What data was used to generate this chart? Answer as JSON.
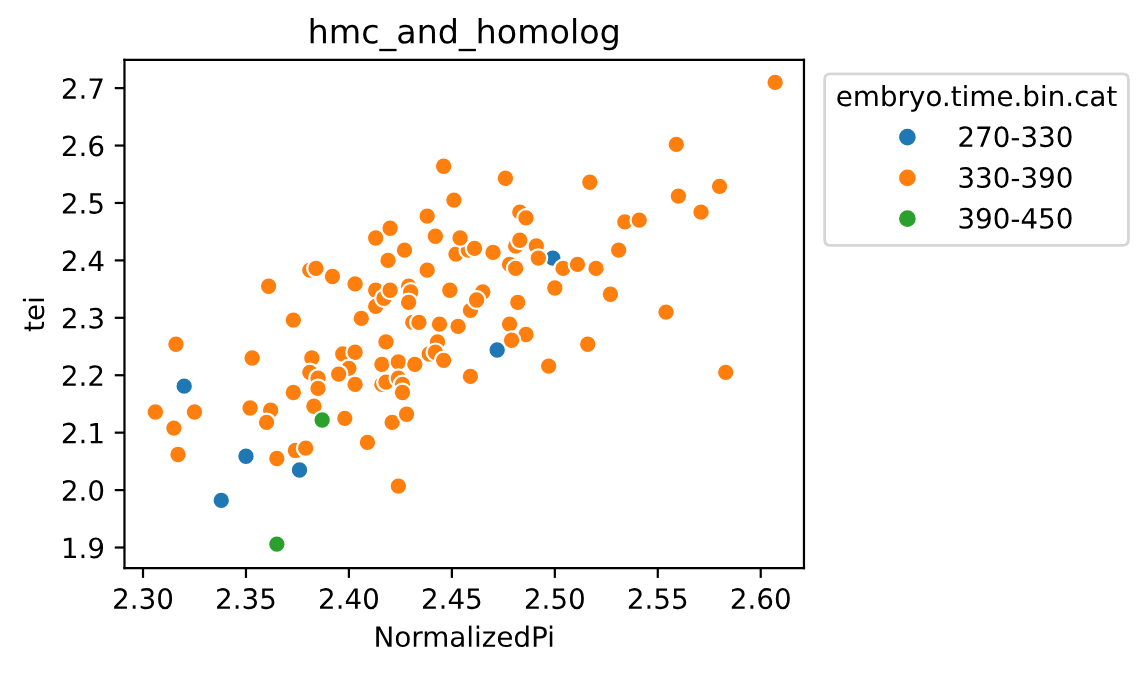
{
  "chart_data": {
    "type": "scatter",
    "title": "hmc_and_homolog",
    "xlabel": "NormalizedPi",
    "ylabel": "tei",
    "legend_title": "embryo.time.bin.cat",
    "legend": "right",
    "marker": "circle",
    "grid": false,
    "xlim": [
      2.291,
      2.621
    ],
    "ylim": [
      1.864,
      2.749
    ],
    "xticks": [
      {
        "value": 2.3,
        "label": "2.30"
      },
      {
        "value": 2.35,
        "label": "2.35"
      },
      {
        "value": 2.4,
        "label": "2.40"
      },
      {
        "value": 2.45,
        "label": "2.45"
      },
      {
        "value": 2.5,
        "label": "2.50"
      },
      {
        "value": 2.55,
        "label": "2.55"
      },
      {
        "value": 2.6,
        "label": "2.60"
      }
    ],
    "yticks": [
      {
        "value": 1.9,
        "label": "1.9"
      },
      {
        "value": 2.0,
        "label": "2.0"
      },
      {
        "value": 2.1,
        "label": "2.1"
      },
      {
        "value": 2.2,
        "label": "2.2"
      },
      {
        "value": 2.3,
        "label": "2.3"
      },
      {
        "value": 2.4,
        "label": "2.4"
      },
      {
        "value": 2.5,
        "label": "2.5"
      },
      {
        "value": 2.6,
        "label": "2.6"
      },
      {
        "value": 2.7,
        "label": "2.7"
      }
    ],
    "series": [
      {
        "name": "270-330",
        "color": "#1f77b4",
        "x": [
          2.32,
          2.338,
          2.35,
          2.376,
          2.472,
          2.499
        ],
        "values": [
          2.181,
          1.982,
          2.059,
          2.035,
          2.244,
          2.404
        ]
      },
      {
        "name": "330-390",
        "color": "#ff7f0e",
        "x": [
          2.316,
          2.361,
          2.373,
          2.381,
          2.384,
          2.392,
          2.403,
          2.406,
          2.413,
          2.413,
          2.417,
          2.42,
          2.419,
          2.413,
          2.42,
          2.427,
          2.429,
          2.43,
          2.429,
          2.431,
          2.434,
          2.444,
          2.453,
          2.438,
          2.449,
          2.438,
          2.442,
          2.446,
          2.451,
          2.452,
          2.458,
          2.459,
          2.418,
          2.443,
          2.607,
          2.559,
          2.476,
          2.517,
          2.56,
          2.58,
          2.571,
          2.534,
          2.541,
          2.483,
          2.486,
          2.454,
          2.461,
          2.47,
          2.481,
          2.483,
          2.491,
          2.492,
          2.478,
          2.481,
          2.504,
          2.511,
          2.52,
          2.531,
          2.5,
          2.527,
          2.554,
          2.465,
          2.462,
          2.482,
          2.478,
          2.486,
          2.479,
          2.516,
          2.353,
          2.382,
          2.381,
          2.385,
          2.385,
          2.373,
          2.397,
          2.403,
          2.4,
          2.395,
          2.403,
          2.416,
          2.424,
          2.416,
          2.418,
          2.424,
          2.426,
          2.426,
          2.432,
          2.439,
          2.442,
          2.446,
          2.306,
          2.315,
          2.317,
          2.325,
          2.352,
          2.362,
          2.36,
          2.383,
          2.398,
          2.409,
          2.421,
          2.428,
          2.424,
          2.365,
          2.374,
          2.379,
          2.459,
          2.497,
          2.583
        ],
        "values": [
          2.254,
          2.355,
          2.296,
          2.383,
          2.386,
          2.372,
          2.359,
          2.299,
          2.348,
          2.32,
          2.334,
          2.348,
          2.4,
          2.439,
          2.456,
          2.418,
          2.355,
          2.345,
          2.327,
          2.292,
          2.292,
          2.289,
          2.285,
          2.383,
          2.348,
          2.477,
          2.442,
          2.564,
          2.505,
          2.411,
          2.418,
          2.313,
          2.258,
          2.258,
          2.71,
          2.602,
          2.543,
          2.536,
          2.512,
          2.529,
          2.484,
          2.467,
          2.47,
          2.484,
          2.474,
          2.439,
          2.421,
          2.414,
          2.425,
          2.435,
          2.425,
          2.404,
          2.393,
          2.386,
          2.386,
          2.393,
          2.386,
          2.418,
          2.352,
          2.341,
          2.31,
          2.345,
          2.331,
          2.327,
          2.289,
          2.271,
          2.261,
          2.254,
          2.23,
          2.23,
          2.205,
          2.195,
          2.177,
          2.17,
          2.237,
          2.24,
          2.212,
          2.202,
          2.184,
          2.219,
          2.223,
          2.184,
          2.188,
          2.195,
          2.184,
          2.17,
          2.219,
          2.237,
          2.24,
          2.226,
          2.136,
          2.108,
          2.062,
          2.136,
          2.143,
          2.139,
          2.118,
          2.146,
          2.125,
          2.083,
          2.118,
          2.132,
          2.007,
          2.055,
          2.069,
          2.073,
          2.198,
          2.216,
          2.205
        ]
      },
      {
        "name": "390-450",
        "color": "#2ca02c",
        "x": [
          2.387,
          2.365
        ],
        "values": [
          2.122,
          1.906
        ]
      }
    ]
  }
}
